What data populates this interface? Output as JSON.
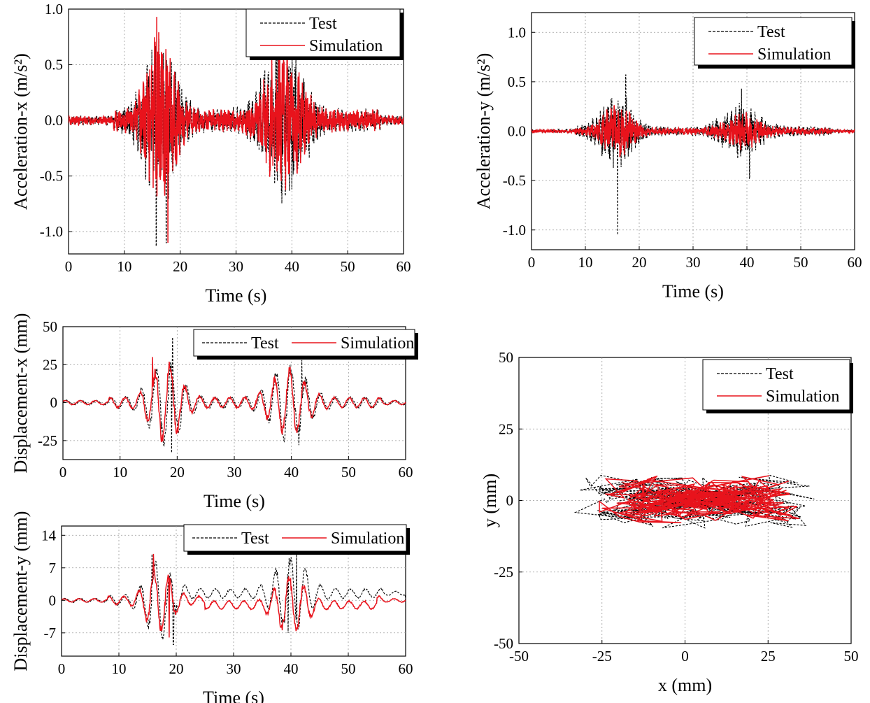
{
  "chart_data": [
    {
      "id": "acc-x",
      "type": "line",
      "xlabel": "Time (s)",
      "ylabel": "Acceleration-x (m/s²)",
      "xlim": [
        0,
        60
      ],
      "ylim": [
        -1.2,
        1.0
      ],
      "xticks": [
        "0",
        "10",
        "20",
        "30",
        "40",
        "50",
        "60"
      ],
      "yticks": [
        "1.0",
        "0.5",
        "0.0",
        "-0.5",
        "-1.0"
      ],
      "grid": true,
      "legend": "top-right",
      "series": [
        {
          "name": "Test",
          "style": "dashed",
          "color": "#000000",
          "amplitude": 0.78,
          "bursts": [
            {
              "t": 16.5,
              "amp": 1.0,
              "width": 3.5
            },
            {
              "t": 38.5,
              "amp": 0.85,
              "width": 4.5
            }
          ],
          "peaks": [
            {
              "t": 15.7,
              "v": -1.13
            },
            {
              "t": 17.5,
              "v": -1.1
            },
            {
              "t": 37.5,
              "v": 0.73
            },
            {
              "t": 40.0,
              "v": -0.62
            }
          ]
        },
        {
          "name": "Simulation",
          "style": "solid",
          "color": "#e8131c",
          "amplitude": 0.75,
          "bursts": [
            {
              "t": 16.5,
              "amp": 1.0,
              "width": 3.2
            },
            {
              "t": 38.5,
              "amp": 0.8,
              "width": 4.0
            }
          ],
          "peaks": [
            {
              "t": 15.8,
              "v": 0.93
            },
            {
              "t": 17.8,
              "v": -1.1
            }
          ]
        }
      ]
    },
    {
      "id": "acc-y",
      "type": "line",
      "xlabel": "Time (s)",
      "ylabel": "Acceleration-y (m/s²)",
      "xlim": [
        0,
        60
      ],
      "ylim": [
        -1.2,
        1.2
      ],
      "xticks": [
        "0",
        "10",
        "20",
        "30",
        "40",
        "50",
        "60"
      ],
      "yticks": [
        "1.0",
        "0.5",
        "0.0",
        "-0.5",
        "-1.0"
      ],
      "grid": true,
      "legend": "top-right",
      "series": [
        {
          "name": "Test",
          "style": "dashed",
          "color": "#000000",
          "amplitude": 0.35,
          "bursts": [
            {
              "t": 16.0,
              "amp": 1.0,
              "width": 4.0
            },
            {
              "t": 39.0,
              "amp": 0.7,
              "width": 4.5
            }
          ],
          "peaks": [
            {
              "t": 16.0,
              "v": -1.05
            },
            {
              "t": 17.5,
              "v": 0.57
            },
            {
              "t": 39.0,
              "v": 0.43
            },
            {
              "t": 40.5,
              "v": -0.48
            }
          ]
        },
        {
          "name": "Simulation",
          "style": "solid",
          "color": "#e8131c",
          "amplitude": 0.26,
          "bursts": [
            {
              "t": 16.0,
              "amp": 1.0,
              "width": 3.5
            },
            {
              "t": 39.0,
              "amp": 0.65,
              "width": 4.0
            }
          ],
          "peaks": []
        }
      ]
    },
    {
      "id": "disp-x",
      "type": "line",
      "xlabel": "Time (s)",
      "ylabel": "Displacement-x (mm)",
      "xlim": [
        0,
        60
      ],
      "ylim": [
        -37.5,
        50
      ],
      "xticks": [
        "0",
        "10",
        "20",
        "30",
        "40",
        "50",
        "60"
      ],
      "yticks": [
        "50",
        "25",
        "0",
        "-25"
      ],
      "grid": true,
      "legend": "top-right",
      "series": [
        {
          "name": "Test",
          "style": "dashed",
          "color": "#000000",
          "amplitude": 28,
          "bursts": [
            {
              "t": 18.0,
              "amp": 1.0,
              "width": 3.5
            },
            {
              "t": 39.5,
              "amp": 0.85,
              "width": 4.0
            }
          ],
          "peaks": [
            {
              "t": 19.2,
              "v": 43
            },
            {
              "t": 19.0,
              "v": -33
            },
            {
              "t": 41.8,
              "v": 28
            },
            {
              "t": 41.3,
              "v": -28
            }
          ]
        },
        {
          "name": "Simulation",
          "style": "solid",
          "color": "#e8131c",
          "amplitude": 26,
          "bursts": [
            {
              "t": 18.0,
              "amp": 1.0,
              "width": 3.3
            },
            {
              "t": 39.5,
              "amp": 0.8,
              "width": 3.8
            }
          ],
          "peaks": [
            {
              "t": 15.7,
              "v": 30
            },
            {
              "t": 17.2,
              "v": -26
            }
          ]
        }
      ]
    },
    {
      "id": "disp-y",
      "type": "line",
      "xlabel": "Time (s)",
      "ylabel": "Displacement-y (mm)",
      "xlim": [
        0,
        60
      ],
      "ylim": [
        -12,
        16
      ],
      "xticks": [
        "0",
        "10",
        "20",
        "30",
        "40",
        "50",
        "60"
      ],
      "yticks": [
        "14",
        "7",
        "0",
        "-7"
      ],
      "grid": true,
      "legend": "top-right",
      "series": [
        {
          "name": "Test",
          "style": "dashed",
          "color": "#000000",
          "amplitude": 8,
          "bursts": [
            {
              "t": 17.0,
              "amp": 1.0,
              "width": 3.0
            },
            {
              "t": 40.0,
              "amp": 1.0,
              "width": 3.5
            }
          ],
          "offset": [
            {
              "t0": 20,
              "t1": 60,
              "v": 1.5
            }
          ],
          "peaks": [
            {
              "t": 15.8,
              "v": 10
            },
            {
              "t": 19.5,
              "v": -9.5
            },
            {
              "t": 41.0,
              "v": 10
            },
            {
              "t": 39.5,
              "v": -7
            }
          ]
        },
        {
          "name": "Simulation",
          "style": "solid",
          "color": "#e8131c",
          "amplitude": 7,
          "bursts": [
            {
              "t": 17.0,
              "amp": 1.0,
              "width": 2.8
            },
            {
              "t": 40.0,
              "amp": 0.9,
              "width": 3.3
            }
          ],
          "offset": [
            {
              "t0": 25,
              "t1": 55,
              "v": -1.0
            }
          ],
          "peaks": [
            {
              "t": 16.0,
              "v": 10
            },
            {
              "t": 18.8,
              "v": -8
            }
          ]
        }
      ]
    },
    {
      "id": "orbit",
      "type": "line",
      "xlabel": "x (mm)",
      "ylabel": "y (mm)",
      "xlim": [
        -50,
        50
      ],
      "ylim": [
        -50,
        50
      ],
      "xticks": [
        "-50",
        "-25",
        "0",
        "25",
        "50"
      ],
      "yticks": [
        "50",
        "25",
        "0",
        "-25",
        "-50"
      ],
      "grid": true,
      "legend": "top-right",
      "series": [
        {
          "name": "Test",
          "style": "dashed",
          "color": "#000000",
          "xrange": [
            -33,
            43
          ],
          "yrange": [
            -10,
            10
          ],
          "center": [
            -2,
            0
          ]
        },
        {
          "name": "Simulation",
          "style": "solid",
          "color": "#e8131c",
          "xrange": [
            -27,
            40
          ],
          "yrange": [
            -8,
            10
          ],
          "center": [
            2,
            0
          ]
        }
      ]
    }
  ]
}
